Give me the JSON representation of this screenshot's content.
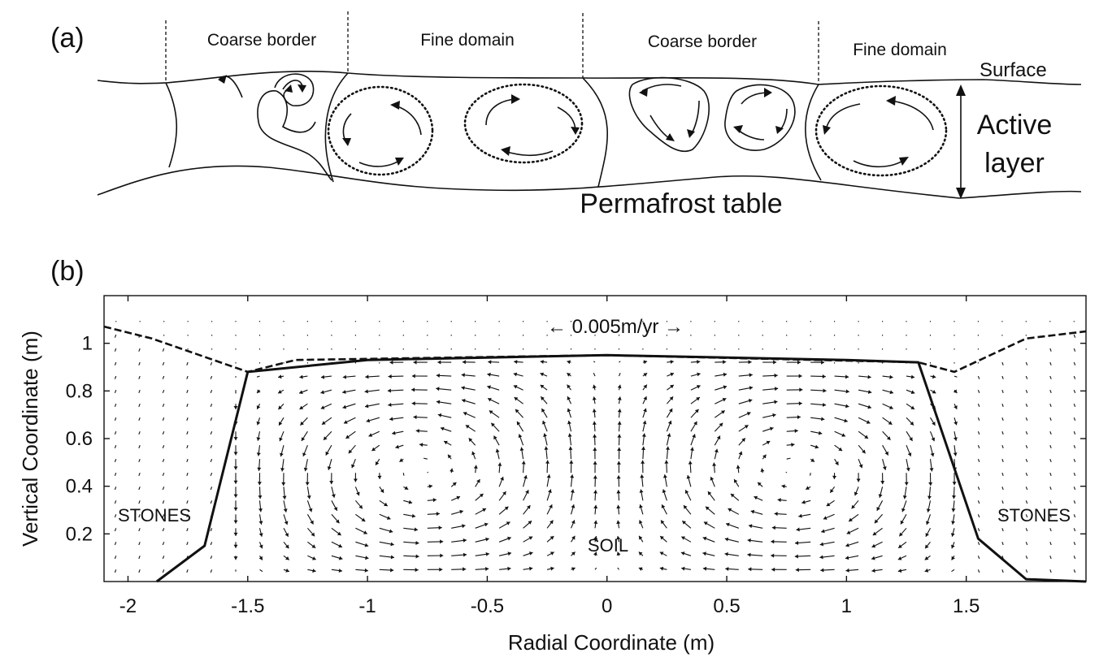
{
  "panel_a": {
    "label": "(a)",
    "region_labels": [
      "Coarse border",
      "Fine domain",
      "Coarse border",
      "Fine domain"
    ],
    "surface_label": "Surface",
    "active_layer_label_line1": "Active",
    "active_layer_label_line2": "layer",
    "permafrost_label": "Permafrost table"
  },
  "panel_b": {
    "label": "(b)",
    "scale_label": "←  0.005m/yr  →",
    "stones_left": "STONES",
    "stones_right": "STONES",
    "soil_label": "SOIL"
  },
  "chart_data": {
    "type": "quiver",
    "xlabel": "Radial Coordinate (m)",
    "ylabel": "Vertical Coordinate (m)",
    "xlim": [
      -2.1,
      2.0
    ],
    "ylim": [
      0,
      1.2
    ],
    "x_ticks": [
      -2,
      -1.5,
      -1,
      -0.5,
      0,
      0.5,
      1,
      1.5
    ],
    "x_tick_labels": [
      "-2",
      "-1.5",
      "-1",
      "-0.5",
      "0",
      "0.5",
      "1",
      "1.5"
    ],
    "y_ticks": [
      0.2,
      0.4,
      0.6,
      0.8,
      1
    ],
    "y_tick_labels": [
      "0.2",
      "0.4",
      "0.6",
      "0.8",
      "1"
    ],
    "grid": false,
    "soil_surface_solid": [
      [
        -1.88,
        0
      ],
      [
        -1.68,
        0.15
      ],
      [
        -1.5,
        0.88
      ],
      [
        -1.0,
        0.93
      ],
      [
        0,
        0.95
      ],
      [
        1.0,
        0.93
      ],
      [
        1.3,
        0.92
      ],
      [
        1.55,
        0.18
      ],
      [
        1.75,
        0.01
      ],
      [
        2.0,
        0
      ]
    ],
    "stone_surface_dashed": [
      [
        -2.1,
        1.07
      ],
      [
        -1.9,
        1.02
      ],
      [
        -1.5,
        0.88
      ],
      [
        -1.3,
        0.93
      ],
      [
        0,
        0.95
      ],
      [
        1.3,
        0.92
      ],
      [
        1.45,
        0.88
      ],
      [
        1.75,
        1.02
      ],
      [
        2.0,
        1.05
      ]
    ]
  }
}
